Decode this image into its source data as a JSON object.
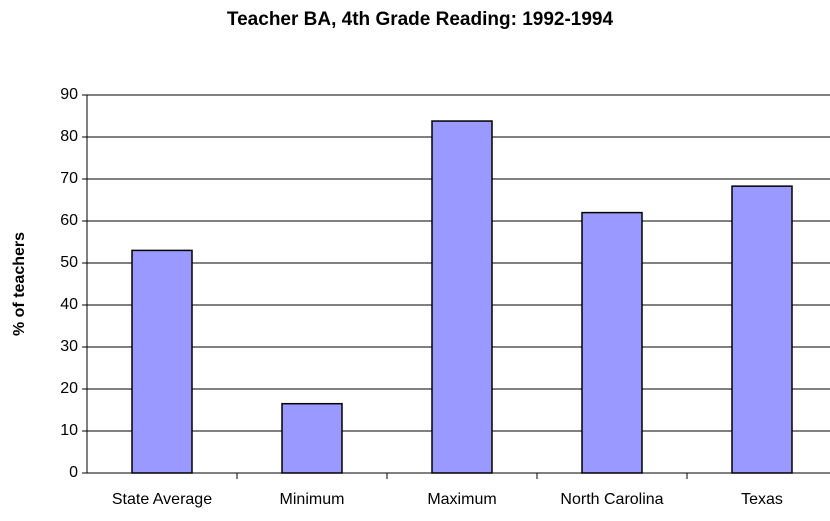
{
  "chart_data": {
    "type": "bar",
    "title": "Teacher BA, 4th Grade Reading:  1992-1994",
    "y_label": "% of teachers",
    "categories": [
      "State Average",
      "Minimum",
      "Maximum",
      "North Carolina",
      "Texas"
    ],
    "values": [
      53,
      16.5,
      83.8,
      62,
      68.3
    ],
    "color": "#9999ff",
    "ylim": [
      0,
      90
    ],
    "yticks": [
      0,
      10,
      20,
      30,
      40,
      50,
      60,
      70,
      80,
      90
    ],
    "grid": true
  }
}
